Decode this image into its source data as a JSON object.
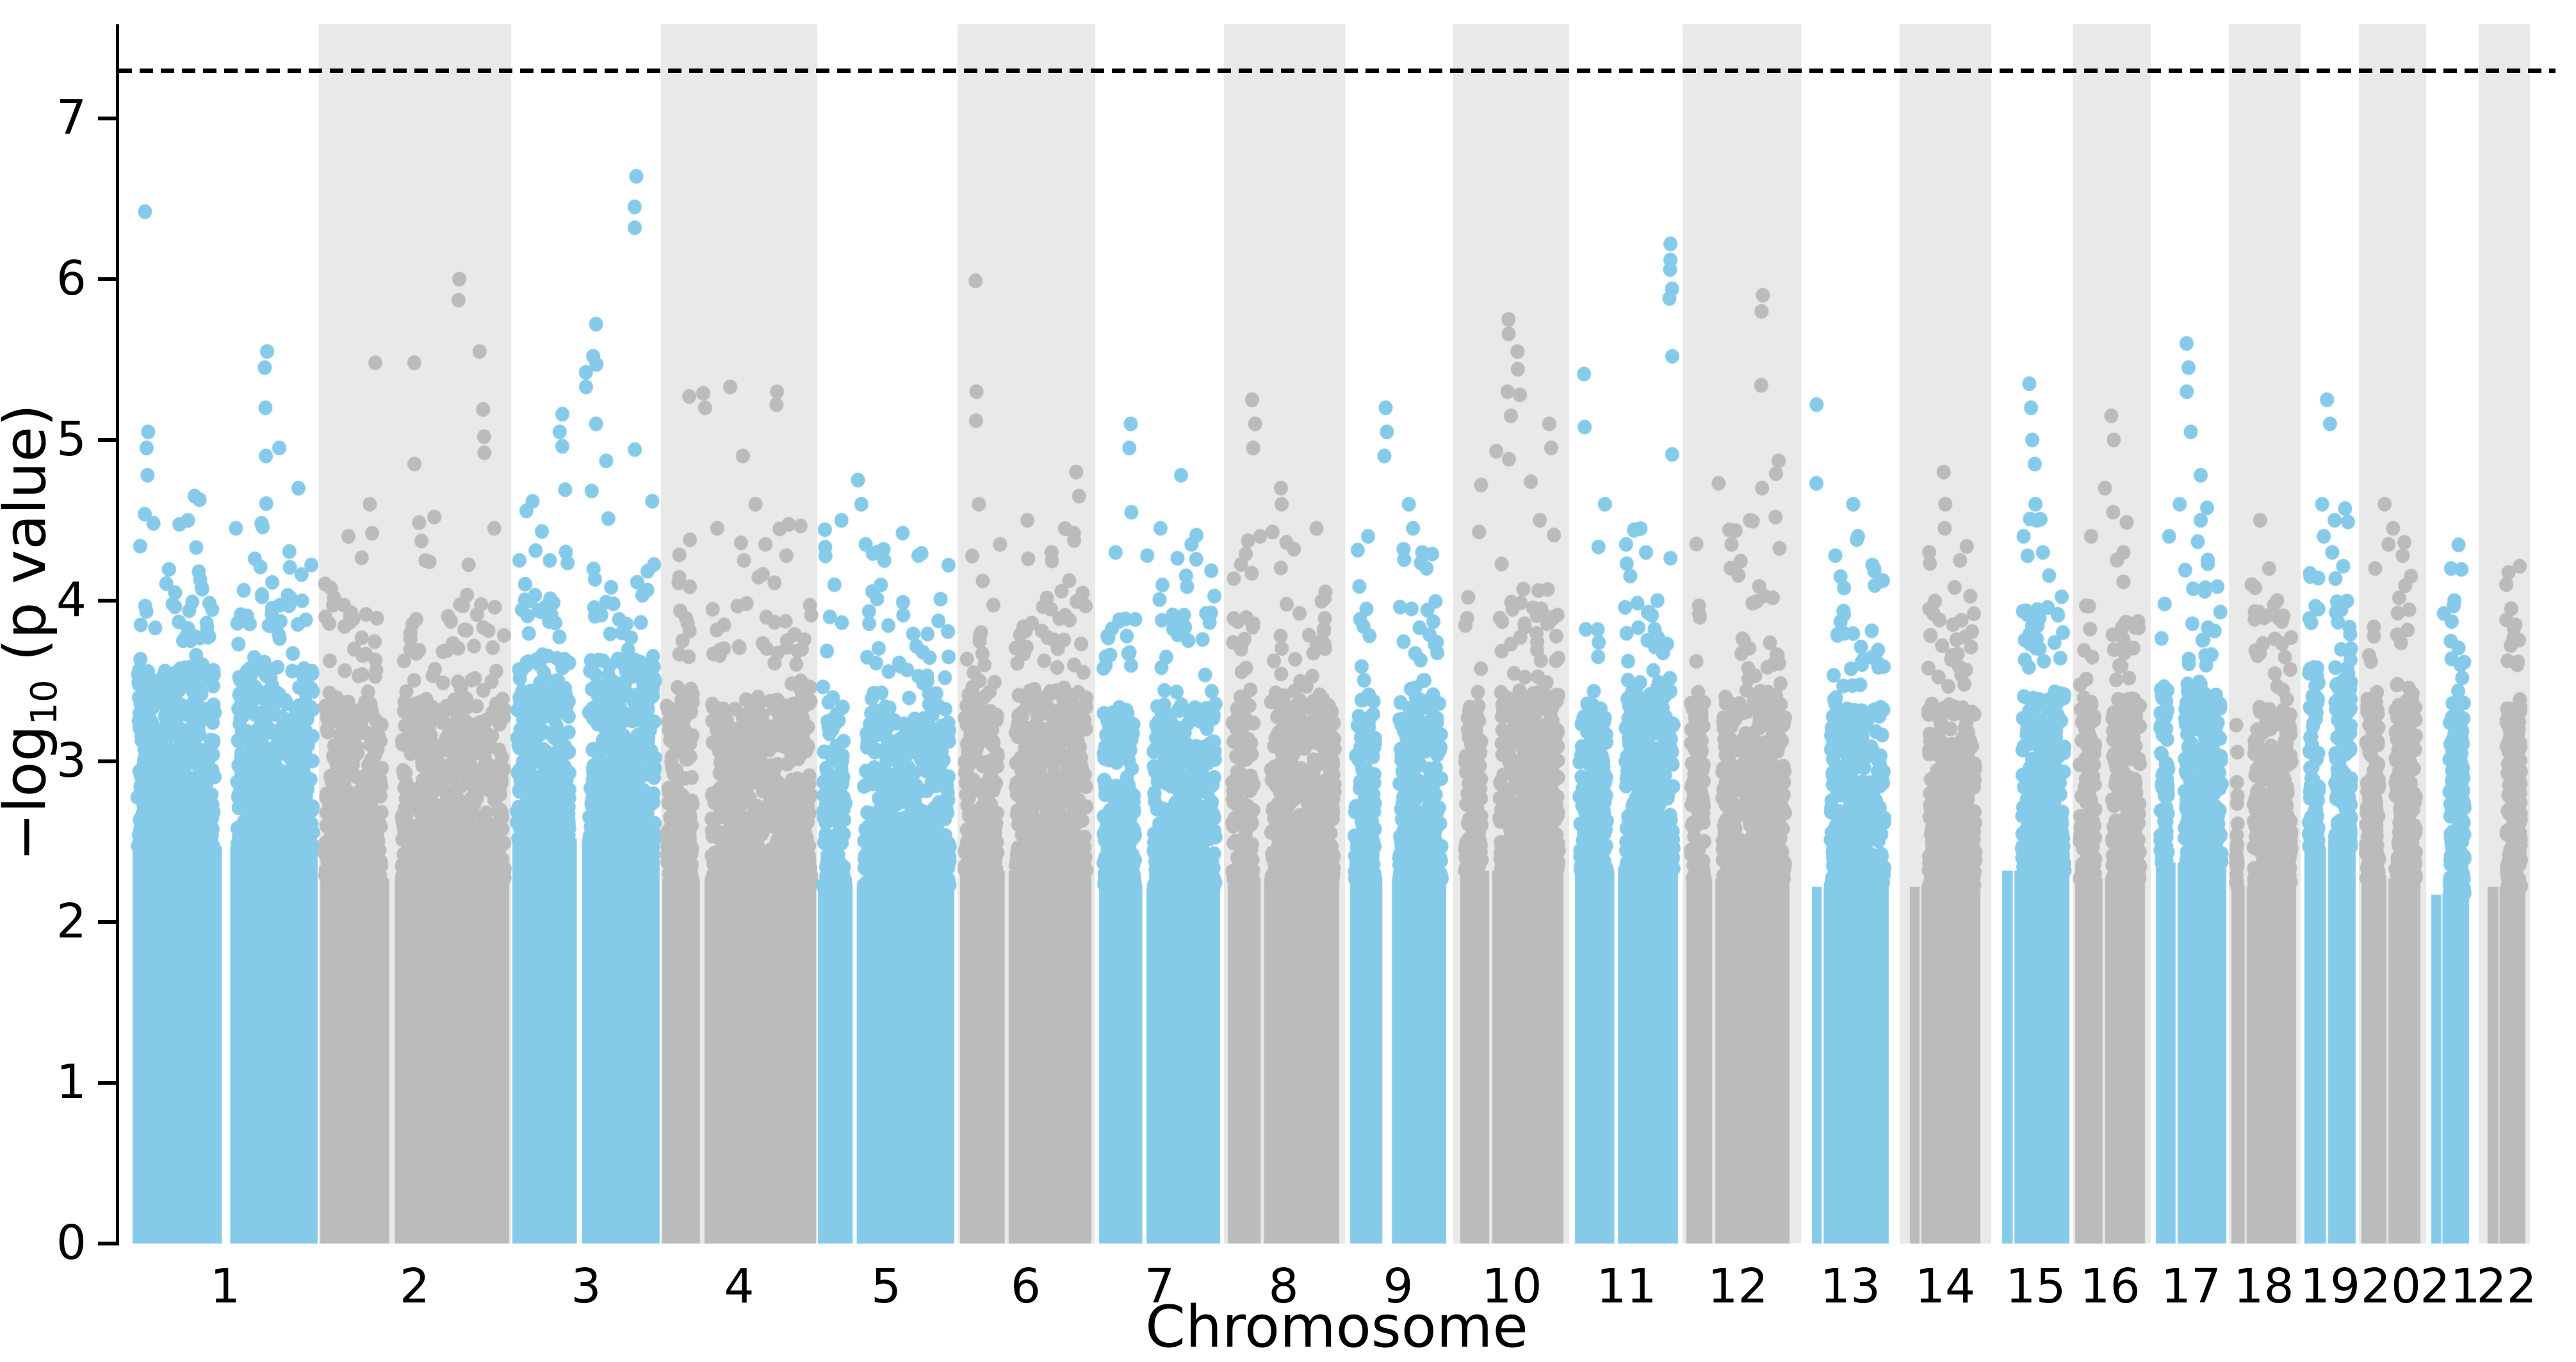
{
  "chart_data": {
    "type": "scatter",
    "subtype": "manhattan-plot",
    "title": "",
    "xlabel": "Chromosome",
    "ylabel": {
      "prefix": "−log",
      "sub": "10",
      "suffix": " (p value)"
    },
    "ylim": [
      0,
      7.59
    ],
    "yticks": [
      0,
      1,
      2,
      3,
      4,
      5,
      6,
      7
    ],
    "grid": false,
    "legend": "none",
    "significance_line": {
      "value": 7.3,
      "style": "dashed",
      "color": "#000000"
    },
    "colors": {
      "odd_chromosome_points": "#85CAE9",
      "even_chromosome_points": "#BBBBBB",
      "even_chromosome_band": "#E9E9E9",
      "axis": "#000000"
    },
    "chromosomes": [
      {
        "label": "1",
        "x_start": 207,
        "x_end": 496,
        "color": "#85CAE9",
        "band": "white",
        "dense_top": 3.25,
        "centromere_gap": {
          "pos": 0.505,
          "width": 0.045
        },
        "peaks": [
          [
            0.065,
            6.42
          ],
          [
            0.72,
            5.55
          ],
          [
            0.723,
            5.45
          ],
          [
            0.725,
            5.2
          ],
          [
            0.08,
            5.05
          ],
          [
            0.075,
            4.95
          ],
          [
            0.79,
            4.95
          ],
          [
            0.73,
            4.9
          ],
          [
            0.085,
            4.78
          ],
          [
            0.89,
            4.7
          ],
          [
            0.335,
            4.65
          ],
          [
            0.3,
            4.5
          ],
          [
            0.55,
            4.45
          ]
        ]
      },
      {
        "label": "2",
        "x_start": 500,
        "x_end": 795,
        "color": "#BBBBBB",
        "band": "gray",
        "dense_top": 3.05,
        "centromere_gap": {
          "pos": 0.38,
          "width": 0.03
        },
        "peaks": [
          [
            0.73,
            6.0
          ],
          [
            0.733,
            5.87
          ],
          [
            0.84,
            5.55
          ],
          [
            0.295,
            5.48
          ],
          [
            0.49,
            5.48
          ],
          [
            0.868,
            5.19
          ],
          [
            0.87,
            5.02
          ],
          [
            0.872,
            4.92
          ],
          [
            0.505,
            4.85
          ],
          [
            0.26,
            4.6
          ],
          [
            0.6,
            4.52
          ],
          [
            0.92,
            4.45
          ],
          [
            0.15,
            4.4
          ]
        ]
      },
      {
        "label": "3",
        "x_start": 800,
        "x_end": 1030,
        "color": "#85CAE9",
        "band": "white",
        "dense_top": 3.3,
        "centromere_gap": {
          "pos": 0.455,
          "width": 0.035
        },
        "peaks": [
          [
            0.84,
            6.64
          ],
          [
            0.842,
            6.45
          ],
          [
            0.84,
            6.32
          ],
          [
            0.565,
            5.72
          ],
          [
            0.56,
            5.52
          ],
          [
            0.562,
            5.47
          ],
          [
            0.49,
            5.42
          ],
          [
            0.492,
            5.33
          ],
          [
            0.56,
            5.1
          ],
          [
            0.33,
            5.16
          ],
          [
            0.332,
            5.05
          ],
          [
            0.335,
            4.96
          ],
          [
            0.84,
            4.94
          ],
          [
            0.635,
            4.87
          ]
        ]
      },
      {
        "label": "4",
        "x_start": 1034,
        "x_end": 1274,
        "color": "#BBBBBB",
        "band": "gray",
        "dense_top": 3.05,
        "centromere_gap": {
          "pos": 0.26,
          "width": 0.03
        },
        "peaks": [
          [
            0.45,
            5.33
          ],
          [
            0.75,
            5.3
          ],
          [
            0.27,
            5.29
          ],
          [
            0.18,
            5.27
          ],
          [
            0.755,
            5.22
          ],
          [
            0.29,
            5.2
          ],
          [
            0.52,
            4.9
          ],
          [
            0.6,
            4.6
          ],
          [
            0.36,
            4.45
          ],
          [
            0.66,
            4.35
          ],
          [
            0.8,
            4.28
          ]
        ]
      },
      {
        "label": "5",
        "x_start": 1277,
        "x_end": 1490,
        "color": "#85CAE9",
        "band": "white",
        "dense_top": 3.0,
        "centromere_gap": {
          "pos": 0.27,
          "width": 0.03
        },
        "peaks": [
          [
            0.3,
            4.75
          ],
          [
            0.33,
            4.6
          ],
          [
            0.18,
            4.5
          ],
          [
            0.62,
            4.42
          ],
          [
            0.35,
            4.35
          ],
          [
            0.75,
            4.28
          ],
          [
            0.5,
            4.25
          ]
        ]
      },
      {
        "label": "6",
        "x_start": 1499,
        "x_end": 1704,
        "color": "#BBBBBB",
        "band": "gray",
        "dense_top": 3.1,
        "centromere_gap": {
          "pos": 0.355,
          "width": 0.03
        },
        "peaks": [
          [
            0.125,
            5.99
          ],
          [
            0.13,
            5.3
          ],
          [
            0.132,
            5.12
          ],
          [
            0.88,
            4.8
          ],
          [
            0.9,
            4.65
          ],
          [
            0.135,
            4.6
          ],
          [
            0.5,
            4.5
          ],
          [
            0.86,
            4.42
          ],
          [
            0.3,
            4.35
          ],
          [
            0.7,
            4.3
          ]
        ]
      },
      {
        "label": "7",
        "x_start": 1716,
        "x_end": 1905,
        "color": "#85CAE9",
        "band": "white",
        "dense_top": 3.0,
        "centromere_gap": {
          "pos": 0.375,
          "width": 0.035
        },
        "peaks": [
          [
            0.26,
            5.1
          ],
          [
            0.262,
            4.95
          ],
          [
            0.68,
            4.78
          ],
          [
            0.28,
            4.55
          ],
          [
            0.52,
            4.45
          ],
          [
            0.75,
            4.35
          ],
          [
            0.15,
            4.3
          ],
          [
            0.4,
            4.28
          ]
        ]
      },
      {
        "label": "8",
        "x_start": 1917,
        "x_end": 2091,
        "color": "#BBBBBB",
        "band": "gray",
        "dense_top": 3.05,
        "centromere_gap": {
          "pos": 0.31,
          "width": 0.03
        },
        "peaks": [
          [
            0.225,
            5.25
          ],
          [
            0.23,
            5.1
          ],
          [
            0.232,
            4.95
          ],
          [
            0.46,
            4.7
          ],
          [
            0.49,
            4.6
          ],
          [
            0.8,
            4.45
          ],
          [
            0.3,
            4.4
          ],
          [
            0.6,
            4.32
          ]
        ]
      },
      {
        "label": "9",
        "x_start": 2108,
        "x_end": 2258,
        "color": "#85CAE9",
        "band": "white",
        "dense_top": 3.05,
        "centromere_gap": {
          "pos": 0.385,
          "width": 0.1
        },
        "peaks": [
          [
            0.36,
            5.2
          ],
          [
            0.37,
            5.05
          ],
          [
            0.365,
            4.9
          ],
          [
            0.62,
            4.6
          ],
          [
            0.65,
            4.45
          ],
          [
            0.2,
            4.4
          ],
          [
            0.55,
            4.32
          ],
          [
            0.75,
            4.3
          ]
        ]
      },
      {
        "label": "10",
        "x_start": 2280,
        "x_end": 2441,
        "color": "#BBBBBB",
        "band": "gray",
        "dense_top": 3.1,
        "centromere_gap": {
          "pos": 0.295,
          "width": 0.03
        },
        "peaks": [
          [
            0.48,
            5.75
          ],
          [
            0.482,
            5.66
          ],
          [
            0.57,
            5.55
          ],
          [
            0.572,
            5.44
          ],
          [
            0.47,
            5.3
          ],
          [
            0.57,
            5.28
          ],
          [
            0.475,
            5.15
          ],
          [
            0.88,
            5.1
          ],
          [
            0.883,
            4.95
          ],
          [
            0.365,
            4.93
          ],
          [
            0.455,
            4.88
          ],
          [
            0.68,
            4.74
          ],
          [
            0.21,
            4.72
          ],
          [
            0.78,
            4.5
          ]
        ]
      },
      {
        "label": "11",
        "x_start": 2459,
        "x_end": 2620,
        "color": "#85CAE9",
        "band": "white",
        "dense_top": 3.1,
        "centromere_gap": {
          "pos": 0.4,
          "width": 0.035
        },
        "peaks": [
          [
            0.93,
            6.22
          ],
          [
            0.932,
            6.12
          ],
          [
            0.93,
            6.06
          ],
          [
            0.933,
            5.94
          ],
          [
            0.93,
            5.88
          ],
          [
            0.932,
            5.52
          ],
          [
            0.075,
            5.41
          ],
          [
            0.11,
            5.08
          ],
          [
            0.935,
            4.91
          ],
          [
            0.3,
            4.6
          ],
          [
            0.5,
            4.35
          ],
          [
            0.7,
            4.3
          ]
        ]
      },
      {
        "label": "12",
        "x_start": 2633,
        "x_end": 2794,
        "color": "#BBBBBB",
        "band": "gray",
        "dense_top": 3.05,
        "centromere_gap": {
          "pos": 0.265,
          "width": 0.03
        },
        "peaks": [
          [
            0.73,
            5.9
          ],
          [
            0.735,
            5.8
          ],
          [
            0.71,
            5.34
          ],
          [
            0.88,
            4.87
          ],
          [
            0.885,
            4.79
          ],
          [
            0.3,
            4.73
          ],
          [
            0.73,
            4.7
          ],
          [
            0.86,
            4.52
          ],
          [
            0.61,
            4.5
          ],
          [
            0.45,
            4.35
          ]
        ]
      },
      {
        "label": "13",
        "x_start": 2829,
        "x_end": 2949,
        "color": "#85CAE9",
        "band": "white",
        "dense_top": 3.0,
        "centromere_gap": {
          "pos": 0.14,
          "width": 0.025
        },
        "peaks": [
          [
            0.07,
            5.22
          ],
          [
            0.072,
            4.73
          ],
          [
            0.55,
            4.6
          ],
          [
            0.62,
            4.4
          ],
          [
            0.32,
            4.28
          ],
          [
            0.8,
            4.2
          ]
        ]
      },
      {
        "label": "14",
        "x_start": 2982,
        "x_end": 3092,
        "color": "#BBBBBB",
        "band": "gray",
        "dense_top": 3.0,
        "centromere_gap": {
          "pos": 0.15,
          "width": 0.025
        },
        "peaks": [
          [
            0.46,
            4.8
          ],
          [
            0.52,
            4.6
          ],
          [
            0.49,
            4.45
          ],
          [
            0.25,
            4.3
          ],
          [
            0.7,
            4.25
          ]
        ]
      },
      {
        "label": "15",
        "x_start": 3126,
        "x_end": 3231,
        "color": "#85CAE9",
        "band": "white",
        "dense_top": 3.1,
        "centromere_gap": {
          "pos": 0.17,
          "width": 0.025
        },
        "peaks": [
          [
            0.42,
            5.35
          ],
          [
            0.44,
            5.2
          ],
          [
            0.47,
            5.0
          ],
          [
            0.475,
            4.85
          ],
          [
            0.52,
            4.6
          ],
          [
            0.5,
            4.5
          ],
          [
            0.3,
            4.4
          ],
          [
            0.6,
            4.3
          ]
        ]
      },
      {
        "label": "16",
        "x_start": 3240,
        "x_end": 3349,
        "color": "#BBBBBB",
        "band": "gray",
        "dense_top": 3.05,
        "centromere_gap": {
          "pos": 0.41,
          "width": 0.035
        },
        "peaks": [
          [
            0.52,
            5.15
          ],
          [
            0.54,
            5.0
          ],
          [
            0.42,
            4.7
          ],
          [
            0.57,
            4.55
          ],
          [
            0.25,
            4.4
          ],
          [
            0.7,
            4.3
          ]
        ]
      },
      {
        "label": "17",
        "x_start": 3366,
        "x_end": 3476,
        "color": "#85CAE9",
        "band": "white",
        "dense_top": 3.15,
        "centromere_gap": {
          "pos": 0.295,
          "width": 0.03
        },
        "peaks": [
          [
            0.46,
            5.6
          ],
          [
            0.465,
            5.45
          ],
          [
            0.46,
            5.3
          ],
          [
            0.47,
            5.05
          ],
          [
            0.62,
            4.78
          ],
          [
            0.32,
            4.6
          ],
          [
            0.64,
            4.5
          ],
          [
            0.2,
            4.4
          ]
        ]
      },
      {
        "label": "18",
        "x_start": 3484,
        "x_end": 3585,
        "color": "#BBBBBB",
        "band": "gray",
        "dense_top": 3.0,
        "centromere_gap": {
          "pos": 0.22,
          "width": 0.03
        },
        "peaks": [
          [
            0.42,
            4.5
          ],
          [
            0.56,
            4.2
          ],
          [
            0.3,
            4.1
          ],
          [
            0.7,
            4.0
          ]
        ]
      },
      {
        "label": "19",
        "x_start": 3598,
        "x_end": 3678,
        "color": "#85CAE9",
        "band": "white",
        "dense_top": 3.25,
        "centromere_gap": {
          "pos": 0.44,
          "width": 0.04
        },
        "peaks": [
          [
            0.46,
            5.25
          ],
          [
            0.462,
            5.1
          ],
          [
            0.32,
            4.6
          ],
          [
            0.62,
            4.5
          ],
          [
            0.35,
            4.4
          ],
          [
            0.55,
            4.3
          ]
        ]
      },
      {
        "label": "20",
        "x_start": 3687,
        "x_end": 3779,
        "color": "#BBBBBB",
        "band": "gray",
        "dense_top": 3.05,
        "centromere_gap": {
          "pos": 0.44,
          "width": 0.03
        },
        "peaks": [
          [
            0.42,
            4.6
          ],
          [
            0.56,
            4.45
          ],
          [
            0.44,
            4.35
          ],
          [
            0.7,
            4.28
          ],
          [
            0.25,
            4.2
          ]
        ]
      },
      {
        "label": "21",
        "x_start": 3796,
        "x_end": 3855,
        "color": "#85CAE9",
        "band": "white",
        "dense_top": 2.95,
        "centromere_gap": {
          "pos": 0.28,
          "width": 0.03
        },
        "peaks": [
          [
            0.52,
            4.2
          ],
          [
            0.58,
            4.0
          ],
          [
            0.35,
            3.92
          ]
        ]
      },
      {
        "label": "22",
        "x_start": 3884,
        "x_end": 3943,
        "color": "#BBBBBB",
        "band": "gray",
        "dense_top": 3.0,
        "centromere_gap": {
          "pos": 0.3,
          "width": 0.03
        },
        "peaks": [
          [
            0.52,
            4.1
          ],
          [
            0.62,
            3.95
          ],
          [
            0.45,
            3.88
          ],
          [
            0.7,
            3.85
          ]
        ]
      }
    ]
  }
}
